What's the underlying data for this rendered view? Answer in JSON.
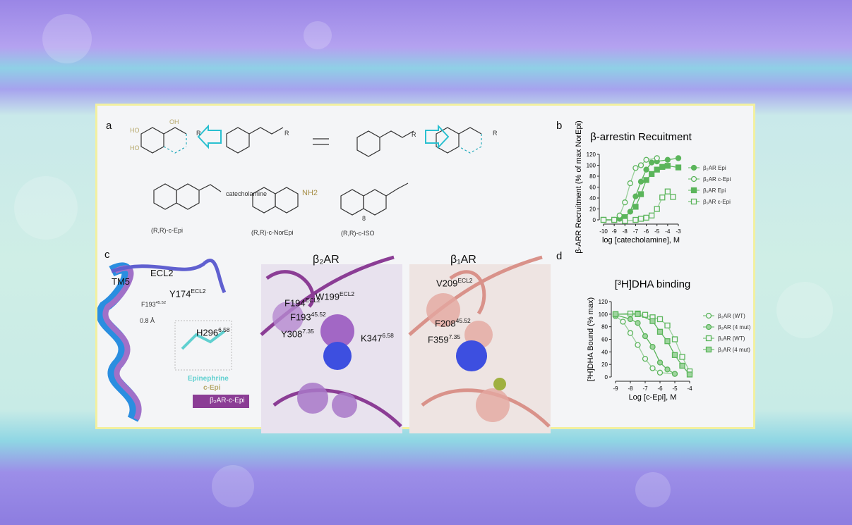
{
  "panel_a": {
    "label": "a",
    "catecholamine": "catecholamine",
    "compounds": [
      "(R,R)-c-Epi",
      "(R,R)-c-NorEpi",
      "(R,R)-c-ISO"
    ],
    "compound_number": "8",
    "groups": {
      "oh": "OH",
      "ho": "HO",
      "nh": "N",
      "h": "H",
      "r": "R",
      "nh2": "NH2"
    }
  },
  "panel_c": {
    "label": "c",
    "tm5": "TM5",
    "ecl2": "ECL2",
    "f193": {
      "base": "F193",
      "sup": "45.52"
    },
    "distance": "0.8 Å",
    "epinephrine": "Epinephrine",
    "cepi": "c-Epi",
    "tag": "β₂AR-c-Epi",
    "b2_title": "β₂AR",
    "b1_title": "β₁AR",
    "b2_residues": [
      {
        "base": "Y174",
        "sup": "ECL2"
      },
      {
        "base": "F194",
        "sup": "ECL2"
      },
      {
        "base": "F193",
        "sup": "45.52"
      },
      {
        "base": "H296",
        "sup": "6.58"
      },
      {
        "base": "Y308",
        "sup": "7.35"
      }
    ],
    "b1_residues": [
      {
        "base": "W199",
        "sup": "ECL2"
      },
      {
        "base": "V209",
        "sup": "ECL2"
      },
      {
        "base": "F208",
        "sup": "45.52"
      },
      {
        "base": "K347",
        "sup": "6.58"
      },
      {
        "base": "F359",
        "sup": "7.35"
      }
    ],
    "colors": {
      "b2": "#8b3d95",
      "b1": "#d9928a",
      "ligand": "#3d4fe0",
      "active": "#28a8e0"
    }
  },
  "chart_data": [
    {
      "panel": "b",
      "type": "scatter",
      "title": "β-arrestin Recuitment",
      "xlabel": "log [catecholamine], M",
      "ylabel": "β-ARR Recruitment (% of max NorEpi)",
      "xlim": [
        -10,
        -3
      ],
      "ylim": [
        0,
        120
      ],
      "xticks": [
        -10,
        -9,
        -8,
        -7,
        -6,
        -5,
        -4,
        -3
      ],
      "yticks": [
        0,
        20,
        40,
        60,
        80,
        100,
        120
      ],
      "legend": "right",
      "color": "#5bb55b",
      "series": [
        {
          "name": "β₂AR Epi",
          "marker": "circle-filled",
          "x": [
            -10,
            -9,
            -8.5,
            -8,
            -7.5,
            -7,
            -6.5,
            -6,
            -5.5,
            -5,
            -4,
            -3
          ],
          "y": [
            0,
            0,
            2,
            5,
            15,
            43,
            70,
            92,
            105,
            107,
            110,
            113
          ]
        },
        {
          "name": "β₂AR c-Epi",
          "marker": "circle-open",
          "x": [
            -10,
            -9,
            -8.5,
            -8,
            -7.5,
            -7,
            -6.5,
            -6,
            -5
          ],
          "y": [
            0,
            0,
            8,
            32,
            67,
            95,
            100,
            110,
            113
          ]
        },
        {
          "name": "β₁AR Epi",
          "marker": "square-filled",
          "x": [
            -10,
            -9,
            -8,
            -7,
            -6.5,
            -6,
            -5.5,
            -5,
            -4.5,
            -4,
            -3
          ],
          "y": [
            0,
            0,
            5,
            24,
            47,
            73,
            84,
            92,
            97,
            99,
            96
          ]
        },
        {
          "name": "β₁AR c-Epi",
          "marker": "square-open",
          "x": [
            -10,
            -9,
            -8,
            -7,
            -6.5,
            -6,
            -5.5,
            -5,
            -4.5,
            -4,
            -3.5
          ],
          "y": [
            0,
            0,
            -2,
            0,
            2,
            4,
            8,
            20,
            41,
            52,
            42
          ]
        }
      ]
    },
    {
      "panel": "d",
      "type": "scatter",
      "title": "[³H]DHA binding",
      "xlabel": "Log [c-Epi], M",
      "ylabel": "[³H]DHA Bound (% max)",
      "xlim": [
        -9,
        -4
      ],
      "ylim": [
        0,
        120
      ],
      "xticks": [
        -9,
        -8,
        -7,
        -6,
        -5,
        -4
      ],
      "yticks": [
        0,
        20,
        40,
        60,
        80,
        100,
        120
      ],
      "legend": "right",
      "color": "#5bb55b",
      "series": [
        {
          "name": "β₂AR (WT)",
          "marker": "circle-open",
          "x": [
            -9,
            -8.5,
            -8,
            -7.5,
            -7,
            -6.5,
            -6,
            -5
          ],
          "y": [
            97,
            88,
            70,
            51,
            29,
            14,
            7,
            5
          ]
        },
        {
          "name": "β₂AR (4 mut)",
          "marker": "circle-half",
          "x": [
            -9,
            -8,
            -7.5,
            -7,
            -6.5,
            -6,
            -5.5,
            -5
          ],
          "y": [
            99,
            92,
            86,
            65,
            48,
            23,
            12,
            5
          ]
        },
        {
          "name": "β₁AR (WT)",
          "marker": "square-open",
          "x": [
            -9,
            -8,
            -7.5,
            -7,
            -6.5,
            -6,
            -5.5,
            -5,
            -4.5,
            -4
          ],
          "y": [
            100,
            101,
            101,
            99,
            95,
            92,
            82,
            60,
            32,
            9
          ]
        },
        {
          "name": "β₁AR (4 mut)",
          "marker": "square-half",
          "x": [
            -9,
            -7.5,
            -6.5,
            -6,
            -5.5,
            -5,
            -4.5,
            -4
          ],
          "y": [
            100,
            100,
            89,
            72,
            57,
            35,
            18,
            4
          ]
        }
      ]
    }
  ]
}
